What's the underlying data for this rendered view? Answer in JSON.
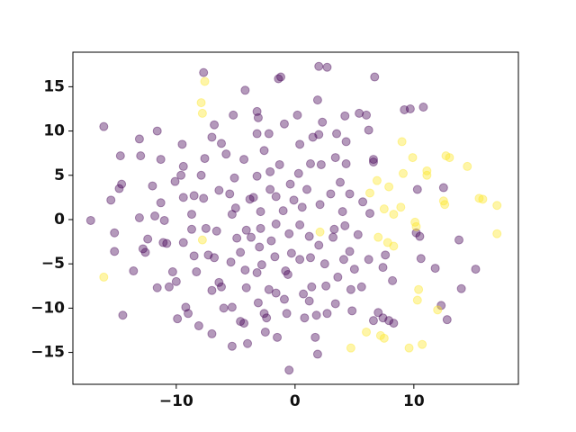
{
  "chart_data": {
    "type": "scatter",
    "xlim": [
      -18.7,
      18.8
    ],
    "ylim": [
      -18.6,
      18.9
    ],
    "xticks": [
      {
        "value": -10,
        "label": "−10"
      },
      0,
      10
    ],
    "yticks": [
      {
        "value": -15,
        "label": "−15"
      },
      {
        "value": -10,
        "label": "−10"
      },
      {
        "value": -5,
        "label": "−5"
      },
      0,
      5,
      10,
      15
    ],
    "grid": false,
    "alpha": 0.4,
    "series": [
      {
        "color": "#440154",
        "x": [
          -17.2,
          -16.1,
          -15.5,
          -15.2,
          -15.2,
          -14.8,
          -14.6,
          -14.7,
          -14.5,
          -13.6,
          -13.1,
          -13.0,
          -13.1,
          -12.8,
          -12.6,
          -12.4,
          -12.0,
          -11.6,
          -11.8,
          -11.3,
          -11.6,
          -11.3,
          -11.0,
          -11.1,
          -10.8,
          -10.6,
          -10.3,
          -10.0,
          -9.9,
          -10.1,
          -9.4,
          -9.5,
          -9.6,
          -9.4,
          -9.0,
          -9.2,
          -9.4,
          -8.7,
          -8.5,
          -8.7,
          -8.5,
          -8.3,
          -8.1,
          -7.9,
          -7.7,
          -7.6,
          -7.7,
          -7.5,
          -7.3,
          -7.0,
          -7.0,
          -7.0,
          -6.8,
          -6.8,
          -6.6,
          -6.4,
          -6.2,
          -6.0,
          -6.4,
          -6.2,
          -5.8,
          -5.5,
          -5.3,
          -5.4,
          -5.3,
          -5.3,
          -5.0,
          -4.9,
          -5.1,
          -5.2,
          -4.6,
          -4.2,
          -4.6,
          -4.3,
          -4.1,
          -4.0,
          -4.1,
          -4.3,
          -4.2,
          -3.8,
          -3.7,
          -3.2,
          -3.1,
          -3.2,
          -3.2,
          -3.5,
          -3.2,
          -3.0,
          -2.9,
          -2.9,
          -2.8,
          -3.1,
          -2.6,
          -2.4,
          -2.6,
          -2.5,
          -2.2,
          -2.0,
          -2.1,
          -2.2,
          -2.1,
          -1.6,
          -1.6,
          -1.7,
          -1.6,
          -1.5,
          -1.3,
          -1.0,
          -1.4,
          -1.2,
          -0.9,
          -0.8,
          -0.6,
          -0.7,
          -0.5,
          -0.9,
          -0.5,
          -0.3,
          -0.4,
          -0.1,
          0.4,
          0.4,
          0.3,
          0.4,
          0.2,
          0.7,
          0.8,
          0.6,
          1.0,
          1.2,
          1.3,
          1.3,
          1.5,
          1.2,
          1.4,
          1.7,
          1.8,
          1.9,
          1.9,
          2.0,
          2.1,
          2.2,
          2.0,
          2.3,
          2.5,
          2.7,
          2.6,
          2.0,
          2.7,
          3.0,
          3.2,
          3.3,
          3.4,
          3.4,
          3.6,
          3.5,
          3.8,
          4.1,
          4.0,
          4.2,
          4.2,
          4.3,
          4.3,
          4.6,
          4.6,
          4.7,
          4.8,
          5.0,
          5.3,
          5.4,
          5.6,
          5.7,
          6.0,
          6.2,
          6.3,
          6.2,
          6.7,
          6.6,
          6.6,
          6.6,
          7.0,
          7.4,
          7.4,
          7.6,
          7.9,
          8.2,
          8.3,
          9.2,
          9.7,
          10.3,
          10.2,
          10.6,
          10.8,
          10.5,
          12.3,
          12.8,
          11.8,
          12.5,
          13.8,
          14.0,
          15.2
        ],
        "y": [
          -0.1,
          10.5,
          2.2,
          -1.5,
          -3.6,
          3.5,
          4.0,
          7.2,
          -10.8,
          -5.8,
          9.1,
          7.2,
          0.2,
          -3.3,
          -3.7,
          -2.2,
          3.8,
          10.0,
          0.4,
          6.8,
          -7.7,
          1.9,
          -0.1,
          -2.6,
          -2.7,
          -7.6,
          -5.9,
          -7.0,
          -11.2,
          4.3,
          6.0,
          8.5,
          5.0,
          2.5,
          -10.6,
          -9.9,
          -2.6,
          0.6,
          2.7,
          -1.1,
          -4.1,
          -5.9,
          -12.0,
          5.0,
          16.6,
          6.9,
          2.4,
          -1.0,
          -4.0,
          -8.0,
          -12.9,
          9.3,
          10.7,
          -4.3,
          -1.3,
          -7.1,
          -7.6,
          -10.0,
          3.3,
          8.6,
          7.4,
          2.9,
          0.6,
          -4.8,
          -9.9,
          -14.3,
          1.3,
          -2.1,
          4.7,
          11.8,
          -11.5,
          -5.7,
          -3.7,
          6.8,
          -7.7,
          -14.0,
          -1.2,
          -11.7,
          14.6,
          2.3,
          -2.0,
          9.7,
          -9.4,
          -6.0,
          4.9,
          2.5,
          12.2,
          -3.1,
          0.9,
          -1.0,
          -5.1,
          11.5,
          7.8,
          -11.1,
          -10.6,
          -12.7,
          -7.9,
          -2.4,
          5.4,
          9.7,
          3.4,
          2.6,
          -0.5,
          -4.2,
          -8.3,
          -13.3,
          6.2,
          1.0,
          15.9,
          16.1,
          -9.0,
          -5.8,
          -6.2,
          -10.6,
          -17.0,
          10.8,
          -1.6,
          -3.8,
          4.0,
          2.2,
          -0.6,
          -4.5,
          5.2,
          8.5,
          11.8,
          -8.4,
          -11.1,
          1.4,
          3.4,
          -1.9,
          -4.3,
          6.3,
          9.3,
          -9.2,
          -7.6,
          -13.3,
          -10.8,
          -15.2,
          13.5,
          -2.9,
          1.7,
          6.2,
          9.6,
          11.0,
          -5.0,
          -10.6,
          -7.5,
          17.3,
          17.2,
          2.9,
          -2.0,
          -1.1,
          -9.5,
          7.0,
          -6.5,
          9.7,
          4.2,
          -4.5,
          0.9,
          -0.7,
          11.7,
          6.3,
          8.8,
          -3.6,
          2.9,
          -7.9,
          -10.3,
          -5.6,
          -1.7,
          12.0,
          -7.6,
          2.0,
          11.8,
          -4.5,
          0.7,
          10.1,
          16.1,
          6.8,
          6.5,
          -11.4,
          -10.5,
          -5.4,
          -11.1,
          -4.0,
          -11.4,
          -6.9,
          -11.7,
          12.4,
          12.5,
          3.4,
          -1.5,
          -4.4,
          12.7,
          -1.9,
          -9.7,
          -11.3,
          -5.5,
          3.6,
          -2.3,
          -7.8,
          -5.6
        ]
      },
      {
        "color": "#fde725",
        "x": [
          -16.1,
          -7.9,
          -7.8,
          -7.6,
          -7.8,
          2.1,
          6.3,
          6.9,
          7.9,
          8.9,
          7.5,
          8.3,
          7.0,
          7.8,
          8.3,
          9.0,
          9.1,
          9.9,
          11.1,
          11.1,
          10.1,
          10.2,
          12.7,
          13.0,
          12.5,
          12.6,
          14.5,
          15.5,
          15.8,
          17.0,
          17.0,
          10.4,
          10.3,
          12.0,
          9.6,
          10.7,
          7.2,
          7.5,
          6.0,
          4.7
        ],
        "y": [
          -6.5,
          13.2,
          12.0,
          15.6,
          -2.3,
          -1.4,
          3.0,
          4.4,
          3.7,
          1.4,
          1.2,
          0.6,
          -2.0,
          -2.6,
          -3.0,
          8.8,
          5.2,
          7.0,
          5.5,
          5.0,
          -0.3,
          -0.8,
          7.2,
          7.0,
          2.1,
          1.7,
          6.0,
          2.4,
          2.3,
          1.6,
          -1.6,
          -7.9,
          -9.1,
          -10.2,
          -14.5,
          -14.1,
          -13.1,
          -13.4,
          -12.7,
          -14.5
        ]
      }
    ]
  }
}
